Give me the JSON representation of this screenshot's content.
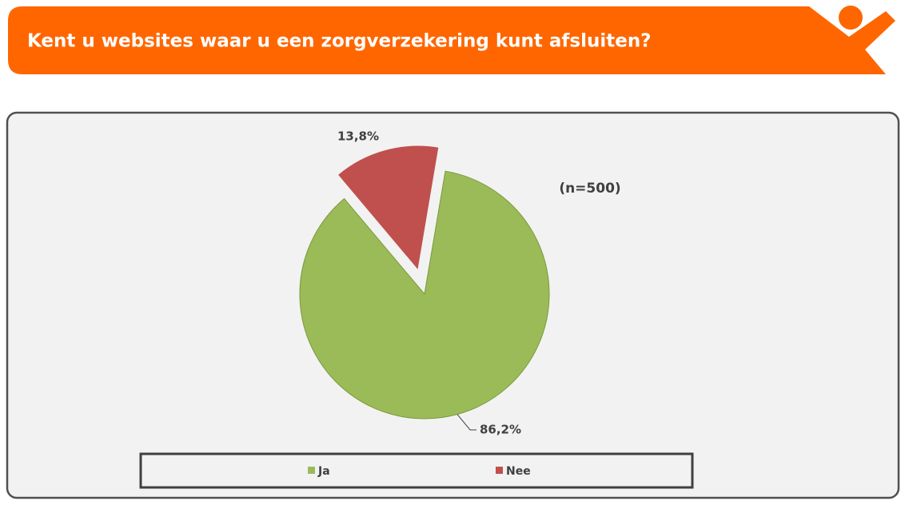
{
  "chart_data": {
    "type": "pie",
    "title": "Kent u websites waar u een zorgverzekering kunt afsluiten?",
    "annotation": "(n=500)",
    "categories": [
      "Ja",
      "Nee"
    ],
    "values": [
      86.2,
      13.8
    ],
    "value_labels": [
      "86,2%",
      "13,8%"
    ],
    "colors": [
      "#9bbb59",
      "#c0504d"
    ],
    "legend": "bottom"
  }
}
